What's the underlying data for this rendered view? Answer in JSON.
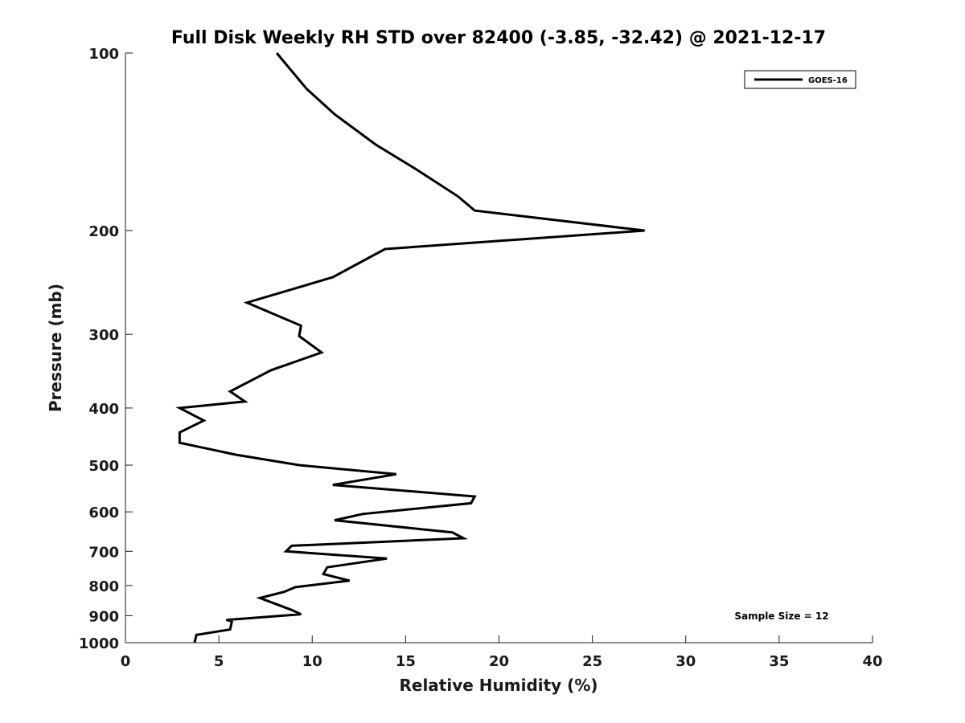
{
  "chart_data": {
    "type": "line",
    "title": "Full Disk Weekly RH STD over 82400 (-3.85, -32.42) @ 2021-12-17",
    "xlabel": "Relative Humidity (%)",
    "ylabel": "Pressure (mb)",
    "xlim": [
      0,
      40
    ],
    "ylim": [
      1000,
      100
    ],
    "yscale": "log",
    "y_reversed": true,
    "grid": false,
    "legend_position": "top-right",
    "xticks": [
      0,
      5,
      10,
      15,
      20,
      25,
      30,
      35,
      40
    ],
    "xtick_labels": [
      "0",
      "5",
      "10",
      "15",
      "20",
      "25",
      "30",
      "35",
      "40"
    ],
    "yticks": [
      100,
      200,
      300,
      400,
      500,
      600,
      700,
      800,
      900,
      1000
    ],
    "ytick_labels": [
      "100",
      "200",
      "300",
      "400",
      "500",
      "600",
      "700",
      "800",
      "900",
      "1000"
    ],
    "annotation": "Sample Size = 12",
    "series": [
      {
        "name": "GOES-16",
        "color": "#000000",
        "x": [
          8.1,
          9.7,
          11.2,
          13.4,
          15.5,
          17.8,
          18.7,
          27.8,
          13.9,
          11.1,
          6.5,
          9.4,
          9.3,
          10.5,
          7.8,
          5.6,
          6.4,
          2.9,
          4.2,
          2.9,
          2.9,
          5.9,
          9.3,
          14.5,
          11.1,
          18.7,
          18.5,
          12.7,
          11.2,
          17.5,
          18.1,
          8.9,
          8.6,
          14.0,
          10.8,
          10.6,
          12.0,
          9.1,
          8.5,
          7.2,
          8.9,
          9.4,
          5.4,
          5.7,
          5.6,
          3.8,
          3.7
        ]
      }
    ],
    "y": [
      100,
      115,
      127,
      143,
      157,
      175,
      185,
      200,
      215,
      240,
      265,
      290,
      302,
      322,
      345,
      375,
      390,
      400,
      420,
      440,
      458,
      480,
      500,
      518,
      540,
      565,
      580,
      605,
      620,
      650,
      665,
      685,
      700,
      720,
      745,
      765,
      785,
      805,
      820,
      840,
      880,
      895,
      915,
      920,
      950,
      970,
      1000
    ]
  }
}
